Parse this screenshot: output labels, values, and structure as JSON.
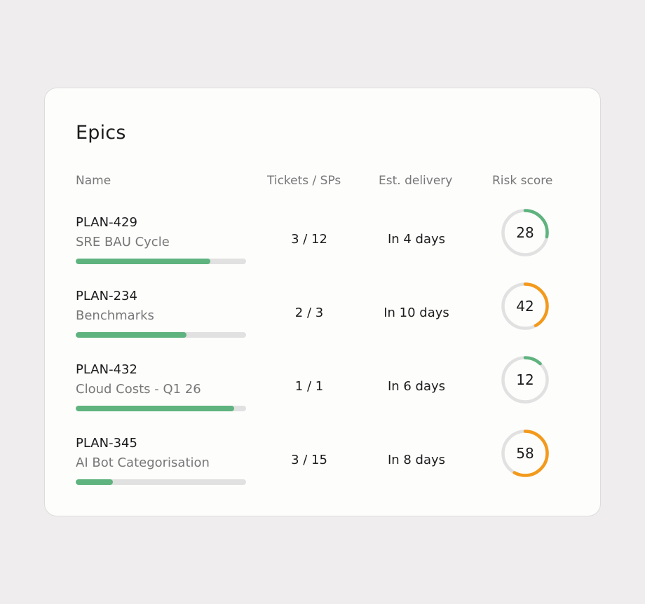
{
  "title": "Epics",
  "columns": {
    "name": "Name",
    "tickets": "Tickets / SPs",
    "delivery": "Est. delivery",
    "risk": "Risk score"
  },
  "colors": {
    "progress": "#5fb37e",
    "risk_low": "#5fb37e",
    "risk_medium": "#f39a1c",
    "track": "#e1e1e1"
  },
  "epics": [
    {
      "id": "PLAN-429",
      "name": "SRE BAU Cycle",
      "progress": 0.79,
      "tickets": "3 / 12",
      "delivery": "In 4 days",
      "risk": "28",
      "risk_fraction": 0.28,
      "risk_level": "low"
    },
    {
      "id": "PLAN-234",
      "name": "Benchmarks",
      "progress": 0.65,
      "tickets": "2 / 3",
      "delivery": "In 10 days",
      "risk": "42",
      "risk_fraction": 0.42,
      "risk_level": "medium"
    },
    {
      "id": "PLAN-432",
      "name": "Cloud Costs - Q1 26",
      "progress": 0.93,
      "tickets": "1 / 1",
      "delivery": "In 6 days",
      "risk": "12",
      "risk_fraction": 0.12,
      "risk_level": "low"
    },
    {
      "id": "PLAN-345",
      "name": "AI Bot Categorisation",
      "progress": 0.22,
      "tickets": "3 / 15",
      "delivery": "In 8 days",
      "risk": "58",
      "risk_fraction": 0.58,
      "risk_level": "medium"
    }
  ]
}
